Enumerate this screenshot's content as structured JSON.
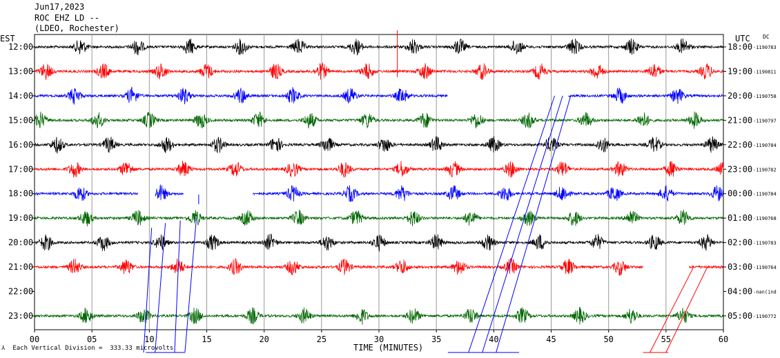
{
  "header": {
    "date": "Jun17,2023",
    "station": "ROC EHZ LD --",
    "network": "(LDEO, Rochester)"
  },
  "footer": {
    "scale_note": "Each Vertical Division =  333.33 microvolts",
    "symbol": "⅄"
  },
  "chart_data": {
    "type": "line",
    "title": "",
    "left_axis_label": "EST",
    "right_axis_label": "UTC",
    "right_axis_sublabel": "DC",
    "xlabel": "TIME (MINUTES)",
    "xlim": [
      0,
      60
    ],
    "x_ticks": [
      "00",
      "05",
      "10",
      "15",
      "20",
      "25",
      "30",
      "35",
      "40",
      "45",
      "50",
      "55",
      "60"
    ],
    "grid": "vertical every minute",
    "colors": [
      "#000000",
      "#ff0000",
      "#0000ff",
      "#006600"
    ],
    "rows": [
      {
        "est": "12:00",
        "utc": "18:00",
        "dc": "-1190783",
        "color": "#000000",
        "gaps": [],
        "burst_minutes": [
          4,
          9,
          13.5,
          18,
          23,
          28,
          33,
          37,
          42,
          47,
          52,
          56.5
        ]
      },
      {
        "est": "13:00",
        "utc": "19:00",
        "dc": "-1190811",
        "color": "#ff0000",
        "gaps": [],
        "burst_minutes": [
          1,
          6,
          11,
          15,
          21,
          25,
          29,
          34,
          39,
          44,
          49,
          54,
          58.5
        ]
      },
      {
        "est": "14:00",
        "utc": "20:00",
        "dc": "-1190758",
        "color": "#0000ff",
        "gaps": [
          [
            36,
            46.5
          ]
        ],
        "burst_minutes": [
          3.5,
          8.5,
          13,
          18,
          22.5,
          27.5,
          32,
          44.5,
          51,
          56
        ]
      },
      {
        "est": "15:00",
        "utc": "21:00",
        "dc": "-1190797",
        "color": "#006600",
        "gaps": [],
        "burst_minutes": [
          0.5,
          5.5,
          10,
          14.5,
          19.5,
          24,
          29,
          34,
          38.5,
          43,
          48,
          53,
          57.5
        ]
      },
      {
        "est": "16:00",
        "utc": "22:00",
        "dc": "-1190784",
        "color": "#000000",
        "gaps": [],
        "burst_minutes": [
          2,
          6.5,
          11.5,
          16,
          21,
          25.5,
          30.5,
          35,
          40,
          45,
          49.5,
          54,
          59
        ]
      },
      {
        "est": "17:00",
        "utc": "23:00",
        "dc": "-1190782",
        "color": "#ff0000",
        "gaps": [],
        "burst_minutes": [
          3.5,
          8,
          13,
          17.5,
          22.5,
          27,
          32,
          36.5,
          41.5,
          46,
          51,
          55.5,
          60
        ]
      },
      {
        "est": "18:00",
        "utc": "00:00",
        "dc": "-1190784",
        "color": "#0000ff",
        "gaps": [
          [
            9,
            10.5
          ],
          [
            13,
            19
          ]
        ],
        "burst_minutes": [
          4,
          11,
          22.5,
          27.5,
          32,
          36.5,
          41,
          46,
          50.5,
          55,
          59.5
        ]
      },
      {
        "est": "19:00",
        "utc": "01:00",
        "dc": "-1190768",
        "color": "#006600",
        "gaps": [],
        "burst_minutes": [
          4.5,
          9,
          14,
          18.5,
          23,
          28,
          33,
          38,
          43,
          47,
          52,
          56.5
        ]
      },
      {
        "est": "20:00",
        "utc": "02:00",
        "dc": "-1190783",
        "color": "#000000",
        "gaps": [],
        "burst_minutes": [
          1,
          6,
          11,
          15.5,
          20.5,
          25.5,
          30,
          35,
          39.5,
          44,
          49,
          54,
          58.5
        ]
      },
      {
        "est": "21:00",
        "utc": "03:00",
        "dc": "-1190764",
        "color": "#ff0000",
        "gaps": [
          [
            53,
            57
          ]
        ],
        "burst_minutes": [
          3.5,
          8,
          12.5,
          17.5,
          22.5,
          27,
          32,
          37,
          41.5,
          46.5,
          51
        ]
      },
      {
        "est": "22:00",
        "utc": "04:00",
        "dc": "-nan(ind",
        "color": "#0000ff",
        "gaps": [
          [
            0,
            60
          ]
        ],
        "burst_minutes": []
      },
      {
        "est": "23:00",
        "utc": "05:00",
        "dc": "-1190772",
        "color": "#006600",
        "gaps": [],
        "burst_minutes": [
          4.5,
          9.5,
          14,
          19,
          23.5,
          28.5,
          33,
          38,
          42.5,
          47.5,
          52,
          56.5
        ]
      }
    ]
  }
}
